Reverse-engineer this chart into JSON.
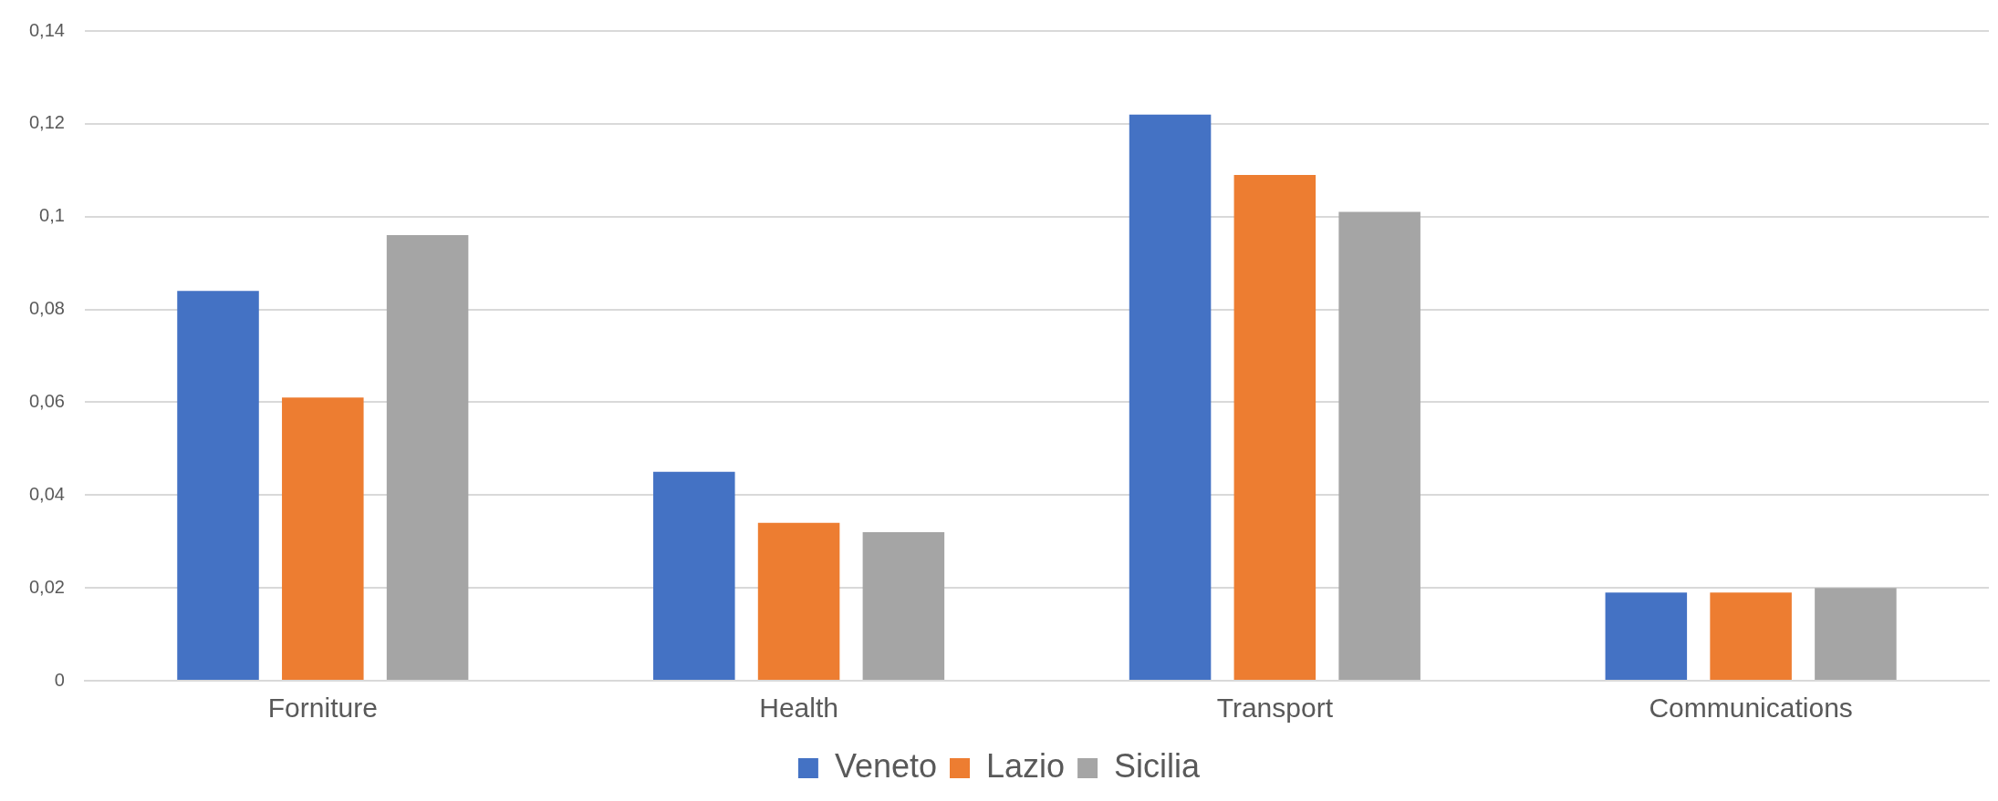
{
  "chart_data": {
    "type": "bar",
    "categories": [
      "Forniture",
      "Health",
      "Transport",
      "Communications"
    ],
    "series": [
      {
        "name": "Veneto",
        "color": "#4472c4",
        "values": [
          0.084,
          0.045,
          0.122,
          0.019
        ]
      },
      {
        "name": "Lazio",
        "color": "#ed7d31",
        "values": [
          0.061,
          0.034,
          0.109,
          0.019
        ]
      },
      {
        "name": "Sicilia",
        "color": "#a5a5a5",
        "values": [
          0.096,
          0.032,
          0.101,
          0.02
        ]
      }
    ],
    "ylim": [
      0,
      0.14
    ],
    "yticks": [
      0,
      {
        "value": 0.02,
        "label": "0,02"
      },
      {
        "value": 0.04,
        "label": "0,04"
      },
      {
        "value": 0.06,
        "label": "0,06"
      },
      {
        "value": 0.08,
        "label": "0,08"
      },
      {
        "value": 0.1,
        "label": "0,1"
      },
      {
        "value": 0.12,
        "label": "0,12"
      },
      {
        "value": 0.14,
        "label": "0,14"
      }
    ],
    "grid": "y",
    "legend": "bottom"
  }
}
